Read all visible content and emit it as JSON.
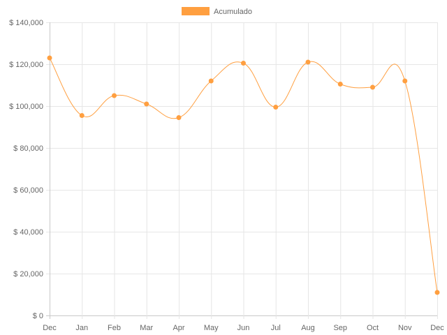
{
  "chart_data": {
    "type": "line",
    "categories": [
      "Dec",
      "Jan",
      "Feb",
      "Mar",
      "Apr",
      "May",
      "Jun",
      "Jul",
      "Aug",
      "Sep",
      "Oct",
      "Nov",
      "Dec"
    ],
    "series": [
      {
        "name": "Acumulado",
        "color": "#ff9f40",
        "values": [
          123000,
          95500,
          105000,
          101000,
          94500,
          112000,
          120500,
          99500,
          121000,
          110500,
          109000,
          112000,
          11000
        ]
      }
    ],
    "ylim": [
      0,
      140000
    ],
    "yticks": [
      0,
      20000,
      40000,
      60000,
      80000,
      100000,
      120000,
      140000
    ],
    "ytick_labels": [
      "$ 0",
      "$ 20,000",
      "$ 40,000",
      "$ 60,000",
      "$ 80,000",
      "$ 100,000",
      "$ 120,000",
      "$ 140,000"
    ],
    "grid": true,
    "legend_position": "top"
  }
}
